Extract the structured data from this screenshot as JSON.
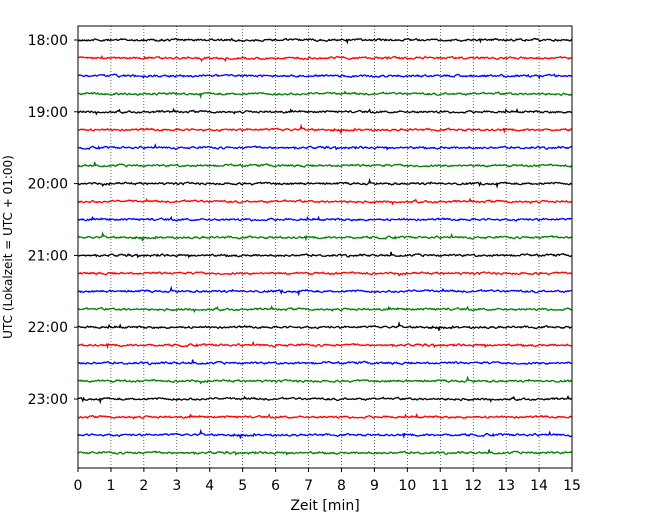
{
  "chart_data": {
    "type": "line",
    "title": "",
    "xlabel": "Zeit  [min]",
    "ylabel": "UTC (Lokalzeit = UTC + 01:00)",
    "xlim": [
      0,
      15
    ],
    "xticks": [
      0,
      1,
      2,
      3,
      4,
      5,
      6,
      7,
      8,
      9,
      10,
      11,
      12,
      13,
      14,
      15
    ],
    "grid": "vertical dotted",
    "legend": "none",
    "trace_minutes": 15,
    "trace_colors": [
      "#000000",
      "#ff0000",
      "#0000ff",
      "#008000"
    ],
    "yticks": [
      {
        "label": "18:00",
        "trace": 0
      },
      {
        "label": "19:00",
        "trace": 4
      },
      {
        "label": "20:00",
        "trace": 8
      },
      {
        "label": "21:00",
        "trace": 12
      },
      {
        "label": "22:00",
        "trace": 16
      },
      {
        "label": "23:00",
        "trace": 20
      }
    ],
    "traces": [
      {
        "start": "18:00",
        "color": "#000000"
      },
      {
        "start": "18:15",
        "color": "#ff0000"
      },
      {
        "start": "18:30",
        "color": "#0000ff"
      },
      {
        "start": "18:45",
        "color": "#008000"
      },
      {
        "start": "19:00",
        "color": "#000000"
      },
      {
        "start": "19:15",
        "color": "#ff0000"
      },
      {
        "start": "19:30",
        "color": "#0000ff"
      },
      {
        "start": "19:45",
        "color": "#008000"
      },
      {
        "start": "20:00",
        "color": "#000000"
      },
      {
        "start": "20:15",
        "color": "#ff0000"
      },
      {
        "start": "20:30",
        "color": "#0000ff"
      },
      {
        "start": "20:45",
        "color": "#008000"
      },
      {
        "start": "21:00",
        "color": "#000000"
      },
      {
        "start": "21:15",
        "color": "#ff0000"
      },
      {
        "start": "21:30",
        "color": "#0000ff"
      },
      {
        "start": "21:45",
        "color": "#008000"
      },
      {
        "start": "22:00",
        "color": "#000000"
      },
      {
        "start": "22:15",
        "color": "#ff0000"
      },
      {
        "start": "22:30",
        "color": "#0000ff"
      },
      {
        "start": "22:45",
        "color": "#008000"
      },
      {
        "start": "23:00",
        "color": "#000000"
      },
      {
        "start": "23:15",
        "color": "#ff0000"
      },
      {
        "start": "23:30",
        "color": "#0000ff"
      },
      {
        "start": "23:45",
        "color": "#008000"
      }
    ]
  }
}
